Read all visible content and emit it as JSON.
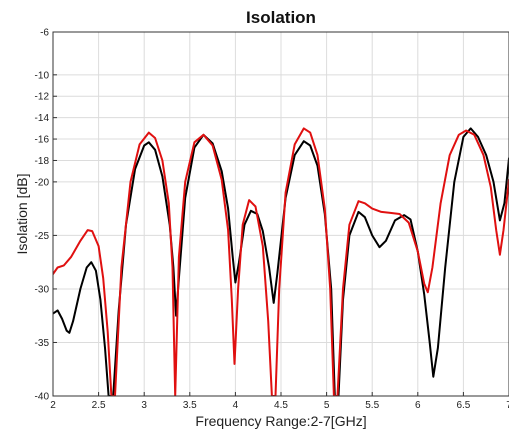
{
  "chart_data": {
    "type": "line",
    "title": "Isolation",
    "xlabel": "Frequency Range:2-7[GHz]",
    "ylabel": "Isolation [dB]",
    "xlim": [
      2,
      7
    ],
    "ylim": [
      -40,
      -6
    ],
    "xticks": [
      2,
      2.5,
      3,
      3.5,
      4,
      4.5,
      5,
      5.5,
      6,
      6.5,
      7
    ],
    "yticks": [
      -6,
      -10,
      -12,
      -14,
      -16,
      -18,
      -20,
      -25,
      -30,
      -35,
      -40
    ],
    "grid": true,
    "series": [
      {
        "color": "#000000",
        "points": [
          [
            2.0,
            -32.3
          ],
          [
            2.05,
            -32.0
          ],
          [
            2.1,
            -32.8
          ],
          [
            2.15,
            -33.9
          ],
          [
            2.18,
            -34.1
          ],
          [
            2.22,
            -33.0
          ],
          [
            2.3,
            -30.0
          ],
          [
            2.37,
            -28.0
          ],
          [
            2.42,
            -27.5
          ],
          [
            2.47,
            -28.3
          ],
          [
            2.52,
            -31.0
          ],
          [
            2.57,
            -35.5
          ],
          [
            2.61,
            -40.0
          ],
          [
            2.66,
            -40.0
          ],
          [
            2.72,
            -32.0
          ],
          [
            2.8,
            -24.0
          ],
          [
            2.9,
            -18.8
          ],
          [
            3.0,
            -16.6
          ],
          [
            3.05,
            -16.3
          ],
          [
            3.12,
            -17.0
          ],
          [
            3.2,
            -19.5
          ],
          [
            3.28,
            -24.0
          ],
          [
            3.32,
            -28.0
          ],
          [
            3.35,
            -32.5
          ],
          [
            3.38,
            -29.0
          ],
          [
            3.45,
            -21.5
          ],
          [
            3.55,
            -16.8
          ],
          [
            3.65,
            -15.6
          ],
          [
            3.75,
            -16.4
          ],
          [
            3.85,
            -19.0
          ],
          [
            3.92,
            -22.5
          ],
          [
            3.97,
            -27.0
          ],
          [
            4.0,
            -29.4
          ],
          [
            4.04,
            -27.5
          ],
          [
            4.1,
            -24.0
          ],
          [
            4.17,
            -22.7
          ],
          [
            4.24,
            -23.0
          ],
          [
            4.3,
            -24.6
          ],
          [
            4.37,
            -28.0
          ],
          [
            4.42,
            -31.3
          ],
          [
            4.46,
            -28.5
          ],
          [
            4.55,
            -21.5
          ],
          [
            4.65,
            -17.5
          ],
          [
            4.75,
            -16.2
          ],
          [
            4.82,
            -16.6
          ],
          [
            4.9,
            -18.5
          ],
          [
            4.98,
            -23.0
          ],
          [
            5.05,
            -30.0
          ],
          [
            5.09,
            -40.0
          ],
          [
            5.13,
            -40.0
          ],
          [
            5.18,
            -31.0
          ],
          [
            5.25,
            -25.0
          ],
          [
            5.35,
            -22.8
          ],
          [
            5.42,
            -23.3
          ],
          [
            5.5,
            -25.0
          ],
          [
            5.58,
            -26.1
          ],
          [
            5.65,
            -25.5
          ],
          [
            5.75,
            -23.6
          ],
          [
            5.85,
            -23.1
          ],
          [
            5.92,
            -23.5
          ],
          [
            6.0,
            -26.5
          ],
          [
            6.07,
            -30.5
          ],
          [
            6.13,
            -35.0
          ],
          [
            6.17,
            -38.2
          ],
          [
            6.22,
            -35.5
          ],
          [
            6.3,
            -28.0
          ],
          [
            6.4,
            -20.0
          ],
          [
            6.5,
            -15.8
          ],
          [
            6.58,
            -15.0
          ],
          [
            6.66,
            -15.8
          ],
          [
            6.75,
            -17.5
          ],
          [
            6.83,
            -20.0
          ],
          [
            6.9,
            -23.6
          ],
          [
            6.95,
            -22.0
          ],
          [
            7.0,
            -17.8
          ]
        ]
      },
      {
        "color": "#e01010",
        "points": [
          [
            2.0,
            -28.6
          ],
          [
            2.05,
            -28.0
          ],
          [
            2.12,
            -27.8
          ],
          [
            2.2,
            -27.0
          ],
          [
            2.3,
            -25.5
          ],
          [
            2.38,
            -24.5
          ],
          [
            2.43,
            -24.6
          ],
          [
            2.5,
            -26.0
          ],
          [
            2.55,
            -29.0
          ],
          [
            2.6,
            -34.0
          ],
          [
            2.64,
            -40.0
          ],
          [
            2.68,
            -40.0
          ],
          [
            2.75,
            -28.0
          ],
          [
            2.85,
            -20.0
          ],
          [
            2.95,
            -16.5
          ],
          [
            3.05,
            -15.4
          ],
          [
            3.12,
            -15.9
          ],
          [
            3.2,
            -18.0
          ],
          [
            3.27,
            -22.0
          ],
          [
            3.31,
            -28.0
          ],
          [
            3.34,
            -40.0
          ],
          [
            3.38,
            -27.0
          ],
          [
            3.45,
            -20.0
          ],
          [
            3.55,
            -16.3
          ],
          [
            3.65,
            -15.6
          ],
          [
            3.75,
            -16.6
          ],
          [
            3.85,
            -19.8
          ],
          [
            3.92,
            -24.5
          ],
          [
            3.96,
            -31.0
          ],
          [
            3.99,
            -37.0
          ],
          [
            4.03,
            -30.0
          ],
          [
            4.08,
            -24.0
          ],
          [
            4.15,
            -21.7
          ],
          [
            4.22,
            -22.3
          ],
          [
            4.3,
            -26.0
          ],
          [
            4.36,
            -33.0
          ],
          [
            4.4,
            -40.0
          ],
          [
            4.44,
            -40.0
          ],
          [
            4.48,
            -30.0
          ],
          [
            4.55,
            -21.0
          ],
          [
            4.65,
            -16.5
          ],
          [
            4.75,
            -15.0
          ],
          [
            4.82,
            -15.4
          ],
          [
            4.9,
            -17.5
          ],
          [
            4.98,
            -22.5
          ],
          [
            5.04,
            -30.0
          ],
          [
            5.08,
            -40.0
          ],
          [
            5.12,
            -40.0
          ],
          [
            5.18,
            -30.0
          ],
          [
            5.25,
            -24.0
          ],
          [
            5.35,
            -21.8
          ],
          [
            5.42,
            -22.0
          ],
          [
            5.5,
            -22.5
          ],
          [
            5.6,
            -22.8
          ],
          [
            5.7,
            -22.9
          ],
          [
            5.8,
            -23.0
          ],
          [
            5.9,
            -23.8
          ],
          [
            6.0,
            -26.5
          ],
          [
            6.07,
            -29.5
          ],
          [
            6.11,
            -30.3
          ],
          [
            6.16,
            -28.0
          ],
          [
            6.25,
            -22.0
          ],
          [
            6.35,
            -17.5
          ],
          [
            6.45,
            -15.6
          ],
          [
            6.53,
            -15.2
          ],
          [
            6.62,
            -15.6
          ],
          [
            6.72,
            -17.5
          ],
          [
            6.8,
            -20.5
          ],
          [
            6.86,
            -24.5
          ],
          [
            6.9,
            -26.8
          ],
          [
            6.94,
            -24.5
          ],
          [
            7.0,
            -19.8
          ]
        ]
      }
    ]
  }
}
